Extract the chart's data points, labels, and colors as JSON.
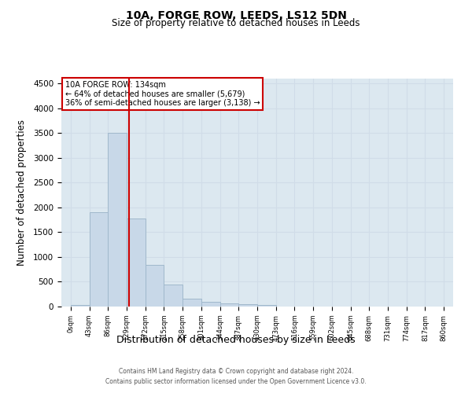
{
  "title": "10A, FORGE ROW, LEEDS, LS12 5DN",
  "subtitle": "Size of property relative to detached houses in Leeds",
  "xlabel": "Distribution of detached houses by size in Leeds",
  "ylabel": "Number of detached properties",
  "bar_values": [
    30,
    1900,
    3500,
    1780,
    840,
    450,
    160,
    95,
    65,
    45,
    30,
    0,
    0,
    0,
    0,
    0,
    0,
    0,
    0,
    0
  ],
  "bar_labels": [
    "0sqm",
    "43sqm",
    "86sqm",
    "129sqm",
    "172sqm",
    "215sqm",
    "258sqm",
    "301sqm",
    "344sqm",
    "387sqm",
    "430sqm",
    "473sqm",
    "516sqm",
    "559sqm",
    "602sqm",
    "645sqm",
    "688sqm",
    "731sqm",
    "774sqm",
    "817sqm",
    "860sqm"
  ],
  "bar_color": "#c8d8e8",
  "bar_edge_color": "#a0b8cc",
  "ylim": [
    0,
    4600
  ],
  "yticks": [
    0,
    500,
    1000,
    1500,
    2000,
    2500,
    3000,
    3500,
    4000,
    4500
  ],
  "property_size": 134,
  "vline_color": "#cc0000",
  "annotation_box_color": "#cc0000",
  "pct_smaller": 64,
  "n_smaller": 5679,
  "pct_larger": 36,
  "n_larger": 3138,
  "footer_line1": "Contains HM Land Registry data © Crown copyright and database right 2024.",
  "footer_line2": "Contains public sector information licensed under the Open Government Licence v3.0.",
  "grid_color": "#d0dce8",
  "background_color": "#dce8f0"
}
